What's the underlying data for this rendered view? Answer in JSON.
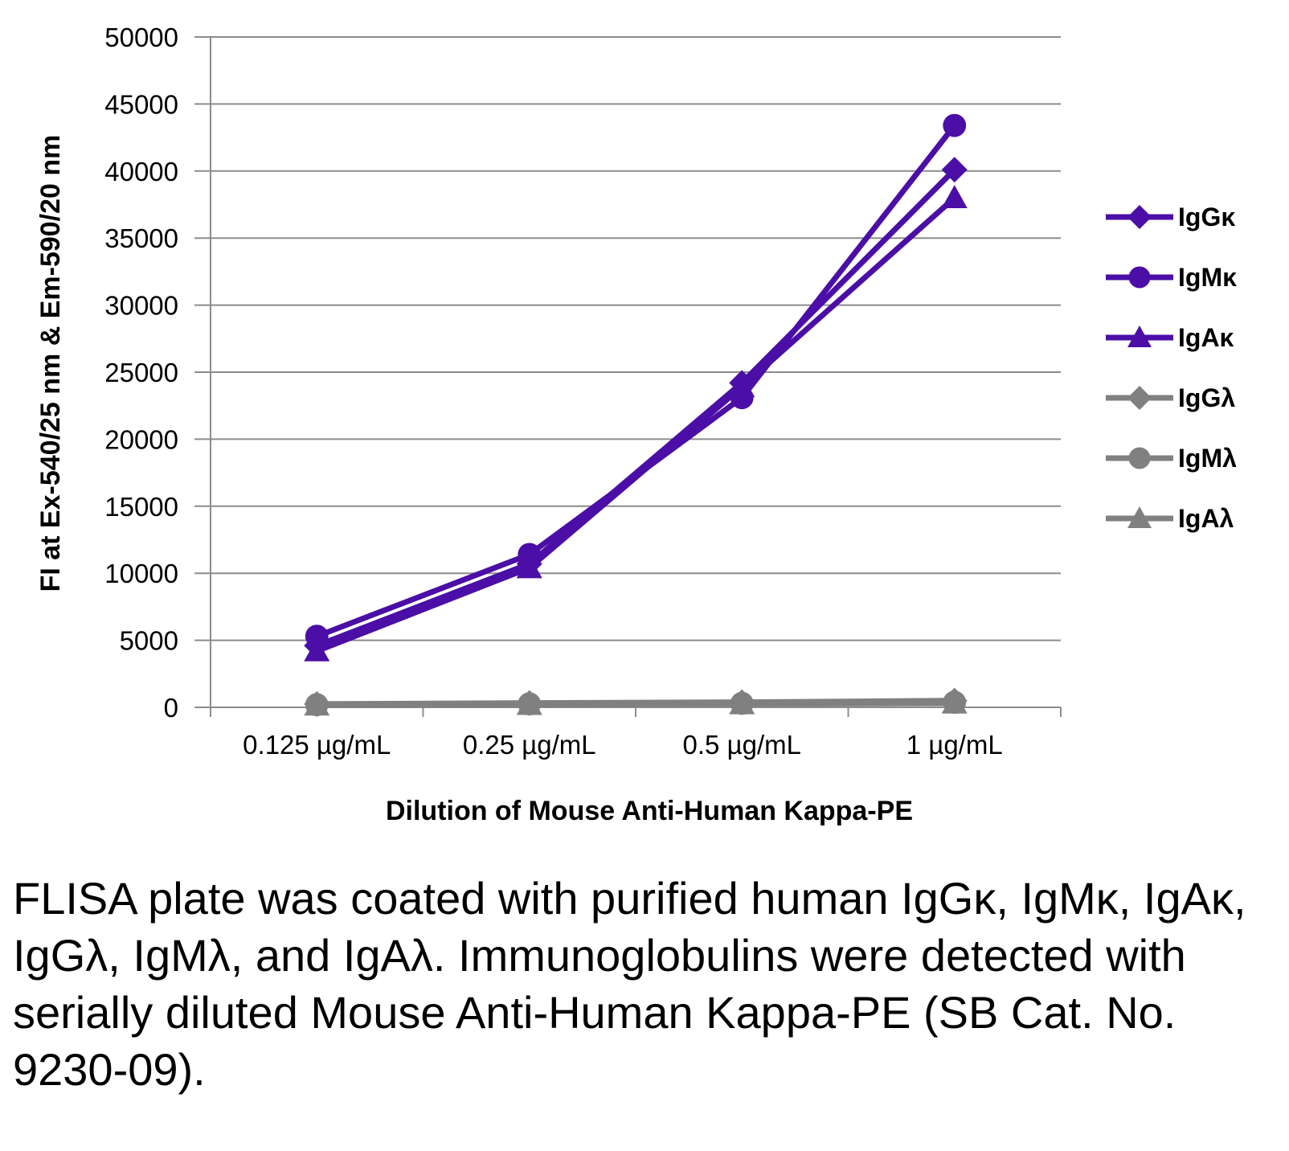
{
  "chart_data": {
    "type": "line",
    "xlabel": "Dilution of Mouse Anti-Human Kappa-PE",
    "ylabel": "FI at Ex-540/25 nm & Em-590/20 nm",
    "categories": [
      "0.125 µg/mL",
      "0.25 µg/mL",
      "0.5 µg/mL",
      "1 µg/mL"
    ],
    "ylim": [
      0,
      50000
    ],
    "yticks": [
      0,
      5000,
      10000,
      15000,
      20000,
      25000,
      30000,
      35000,
      40000,
      45000,
      50000
    ],
    "grid": true,
    "legend_position": "right",
    "series": [
      {
        "name": "IgGκ",
        "marker": "diamond",
        "color": "#4b0ea6",
        "values": [
          4600,
          10700,
          24200,
          40100
        ]
      },
      {
        "name": "IgMκ",
        "marker": "circle",
        "color": "#4b0ea6",
        "values": [
          5300,
          11400,
          23100,
          43400
        ]
      },
      {
        "name": "IgAκ",
        "marker": "triangle",
        "color": "#4b0ea6",
        "values": [
          4200,
          10400,
          23900,
          38000
        ]
      },
      {
        "name": "IgGλ",
        "marker": "diamond",
        "color": "#808080",
        "values": [
          250,
          320,
          380,
          500
        ]
      },
      {
        "name": "IgMλ",
        "marker": "circle",
        "color": "#808080",
        "values": [
          200,
          260,
          300,
          380
        ]
      },
      {
        "name": "IgAλ",
        "marker": "triangle",
        "color": "#808080",
        "values": [
          150,
          200,
          250,
          300
        ]
      }
    ]
  },
  "caption": "FLISA plate was coated with purified human IgGκ, IgMκ, IgAκ, IgGλ, IgMλ, and IgAλ. Immunoglobulins were detected with serially diluted Mouse Anti-Human Kappa-PE (SB Cat. No. 9230-09)."
}
